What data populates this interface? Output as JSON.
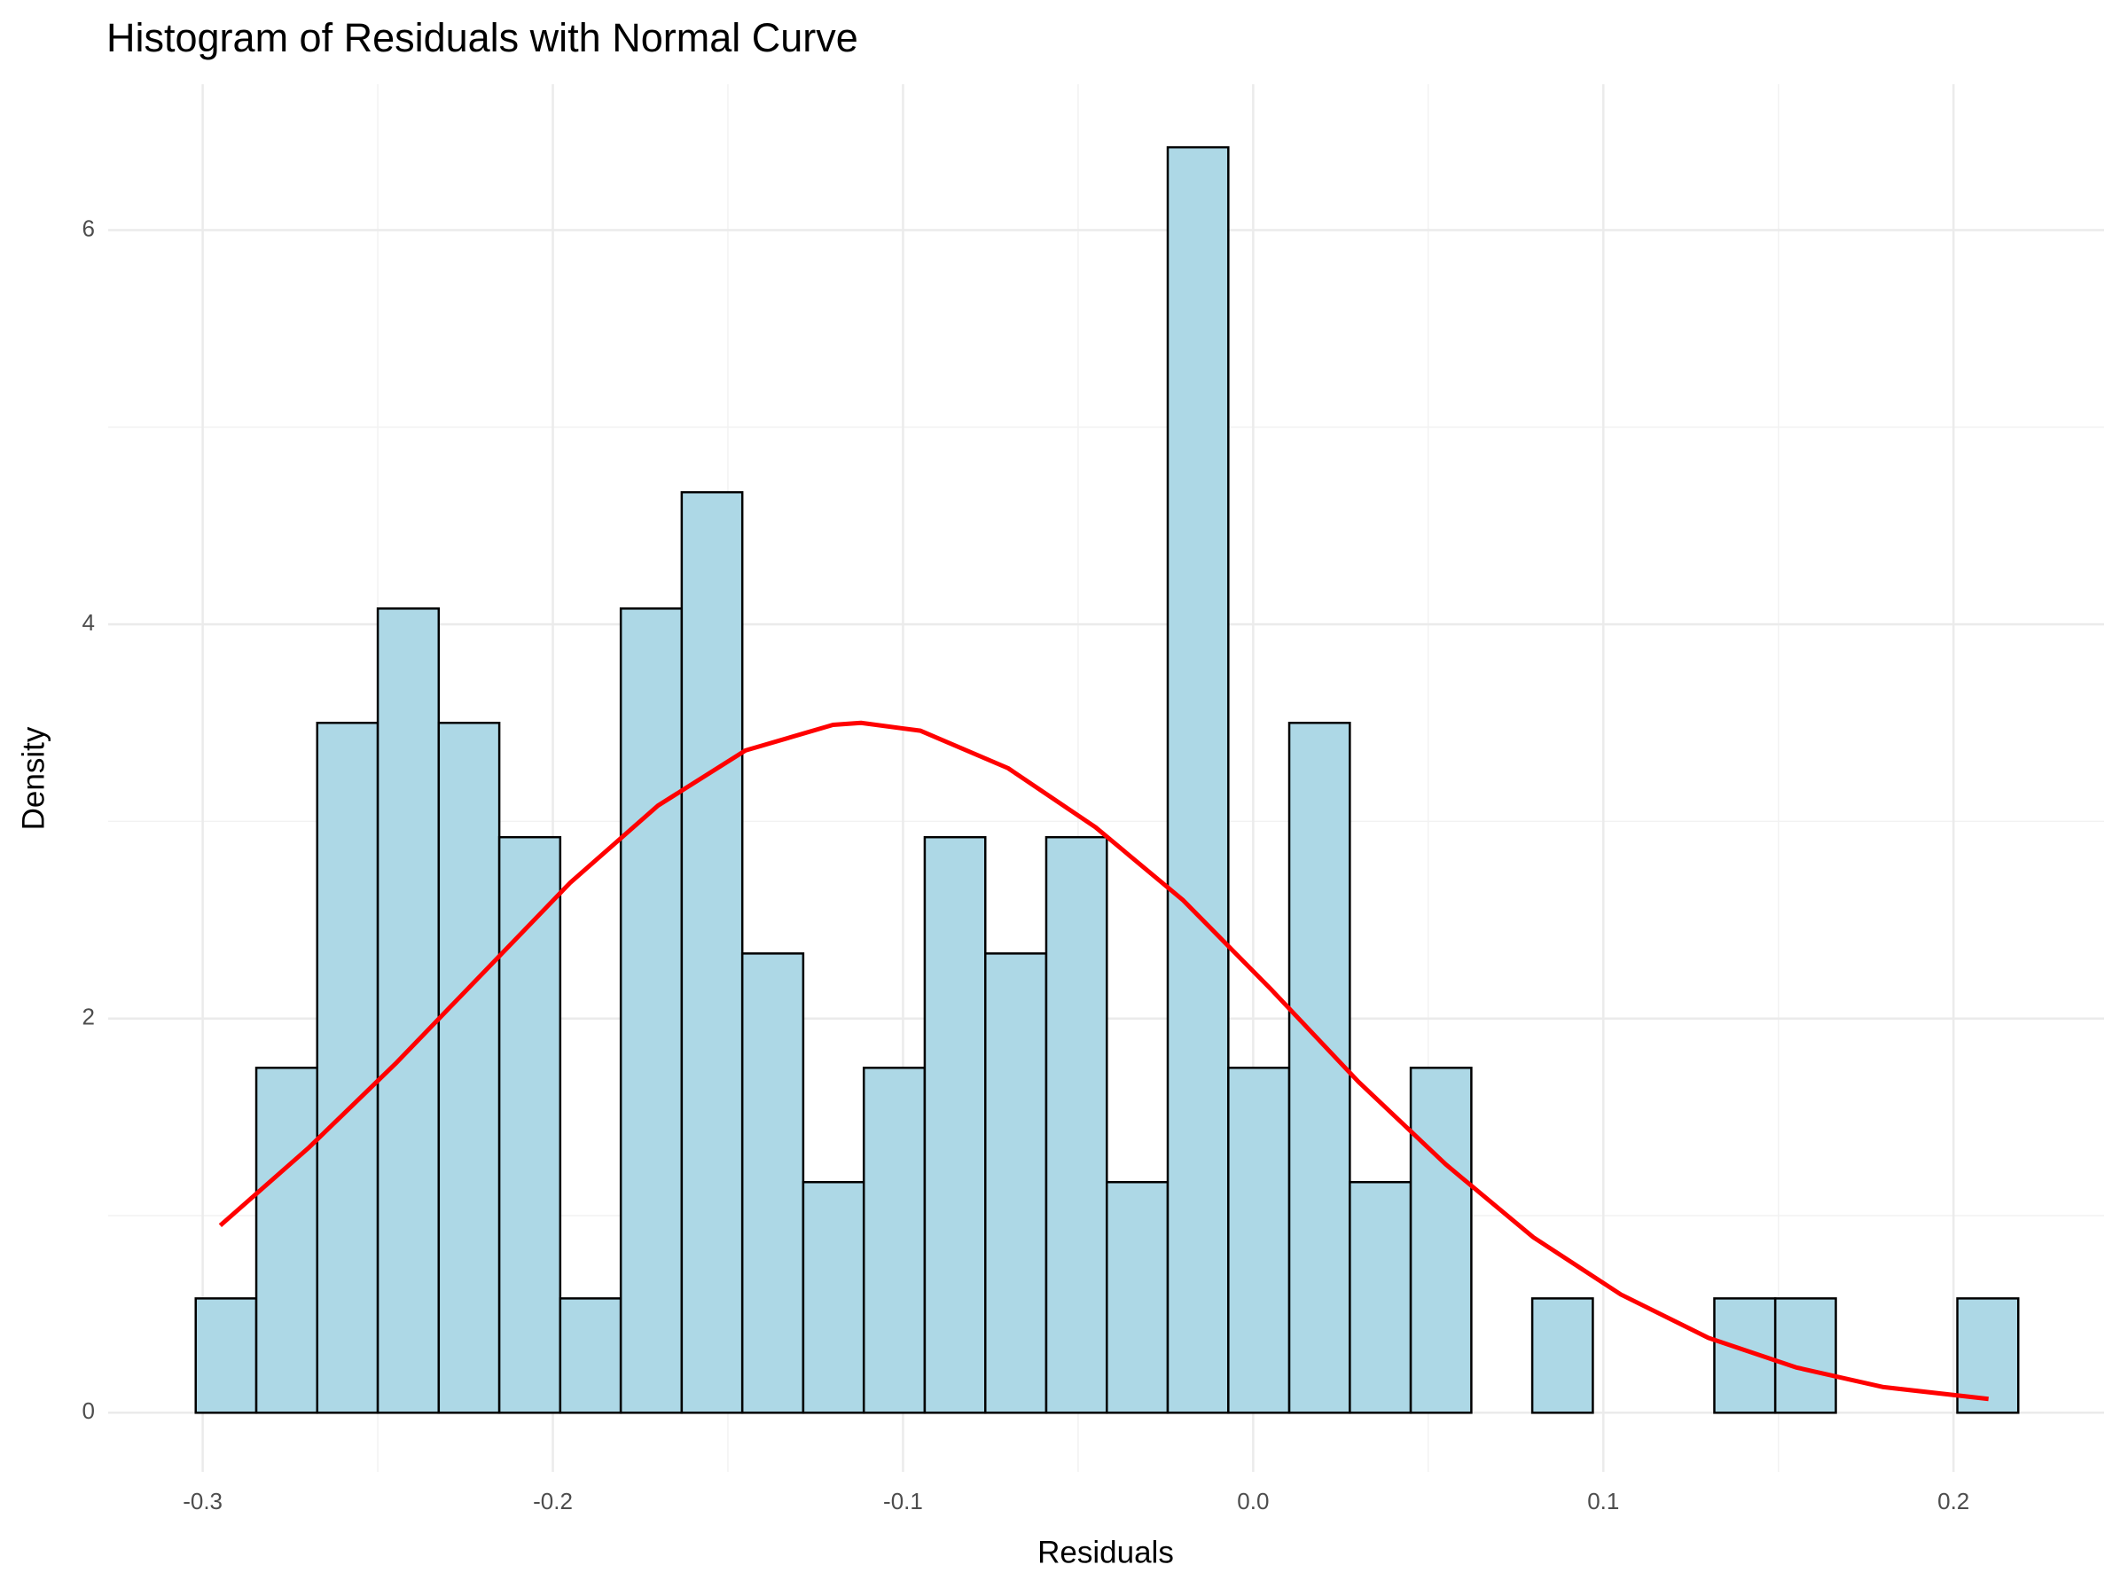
{
  "chart_data": {
    "type": "histogram",
    "title": "Histogram of Residuals with Normal Curve",
    "x_label": "Residuals",
    "y_label": "Density",
    "bins": [
      -0.302,
      -0.2847,
      -0.2673,
      -0.25,
      -0.2326,
      -0.2153,
      -0.1979,
      -0.1806,
      -0.1632,
      -0.1459,
      -0.1285,
      -0.1112,
      -0.0938,
      -0.0765,
      -0.0591,
      -0.0418,
      -0.0244,
      -0.0071,
      0.0103,
      0.0276,
      0.045,
      0.0623,
      0.0797,
      0.097,
      0.1144,
      0.1317,
      0.1491,
      0.1664,
      0.1838,
      0.2011,
      0.2185
    ],
    "values": [
      0.58,
      1.75,
      3.5,
      4.08,
      3.5,
      2.92,
      0.58,
      4.08,
      4.67,
      2.33,
      1.17,
      1.75,
      2.92,
      2.33,
      2.92,
      1.17,
      6.42,
      1.75,
      3.5,
      1.17,
      1.75,
      0,
      0.58,
      0,
      0,
      0.58,
      0.58,
      0,
      0,
      0.58
    ],
    "color": "#add8e6",
    "edge_color": "#000000",
    "curve": {
      "color": "#ff0000",
      "x": [
        -0.295,
        -0.27,
        -0.245,
        -0.22,
        -0.195,
        -0.17,
        -0.145,
        -0.12,
        -0.112,
        -0.095,
        -0.07,
        -0.045,
        -0.02,
        0.005,
        0.03,
        0.055,
        0.08,
        0.105,
        0.13,
        0.155,
        0.18,
        0.21
      ],
      "values": [
        0.95,
        1.34,
        1.77,
        2.23,
        2.69,
        3.08,
        3.36,
        3.49,
        3.5,
        3.46,
        3.27,
        2.97,
        2.6,
        2.15,
        1.68,
        1.26,
        0.89,
        0.6,
        0.38,
        0.23,
        0.13,
        0.07
      ]
    },
    "xlim": [
      -0.327,
      0.243
    ],
    "ylim": [
      -0.3,
      6.74
    ],
    "xticks": [
      -0.3,
      -0.2,
      -0.1,
      {
        "value": 0,
        "label": "0.0"
      },
      0.1,
      0.2
    ],
    "yticks": [
      0,
      2,
      4,
      6
    ],
    "grid": true
  }
}
